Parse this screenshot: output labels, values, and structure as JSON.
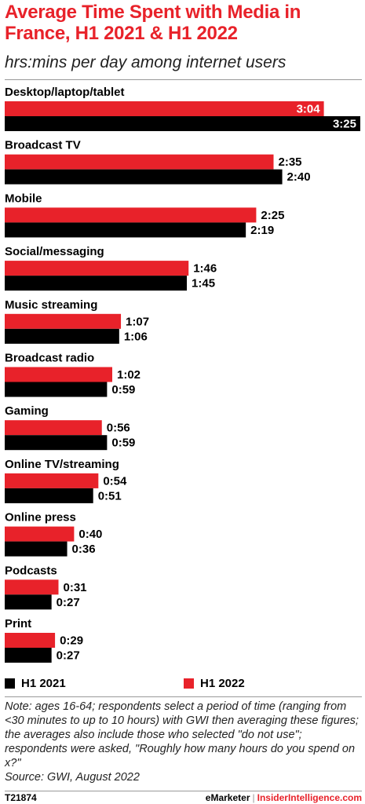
{
  "header": {
    "title": "Average Time Spent with Media in France, H1 2021 & H1 2022",
    "subtitle": "hrs:mins per day among internet users"
  },
  "colors": {
    "h1_2022": "#e8222a",
    "h1_2021": "#000000"
  },
  "chart_data": {
    "type": "bar",
    "orientation": "horizontal",
    "title": "Average Time Spent with Media in France, H1 2021 & H1 2022",
    "subtitle": "hrs:mins per day among internet users",
    "unit": "hrs:mins",
    "categories": [
      "Desktop/laptop/tablet",
      "Broadcast TV",
      "Mobile",
      "Social/messaging",
      "Music streaming",
      "Broadcast radio",
      "Gaming",
      "Online TV/streaming",
      "Online press",
      "Podcasts",
      "Print"
    ],
    "series": [
      {
        "name": "H1 2022",
        "color": "#e8222a",
        "labels": [
          "3:04",
          "2:35",
          "2:25",
          "1:46",
          "1:07",
          "1:02",
          "0:56",
          "0:54",
          "0:40",
          "0:31",
          "0:29"
        ],
        "values": [
          184,
          155,
          145,
          106,
          67,
          62,
          56,
          54,
          40,
          31,
          29
        ]
      },
      {
        "name": "H1 2021",
        "color": "#000000",
        "labels": [
          "3:25",
          "2:40",
          "2:19",
          "1:45",
          "1:06",
          "0:59",
          "0:59",
          "0:51",
          "0:36",
          "0:27",
          "0:27"
        ],
        "values": [
          205,
          160,
          139,
          105,
          66,
          59,
          59,
          51,
          36,
          27,
          27
        ]
      }
    ],
    "value_units": "minutes per day",
    "xlim": [
      0,
      205
    ],
    "grid": false,
    "legend_position": "bottom-left"
  },
  "legend": [
    {
      "name": "H1 2021",
      "color": "#000000"
    },
    {
      "name": "H1 2022",
      "color": "#e8222a"
    }
  ],
  "note": "Note: ages 16-64; respondents select a period of time (ranging from <30 minutes to up to 10 hours) with GWI then averaging these figures; the averages also include those who selected \"do not use\"; respondents were asked, \"Roughly how many hours do you spend on x?\"",
  "source": "Source:  GWI, August 2022",
  "footer": {
    "chart_id": "T21874",
    "brand_left": "eMarketer",
    "separator": "|",
    "brand_right": "InsiderIntelligence.com"
  }
}
